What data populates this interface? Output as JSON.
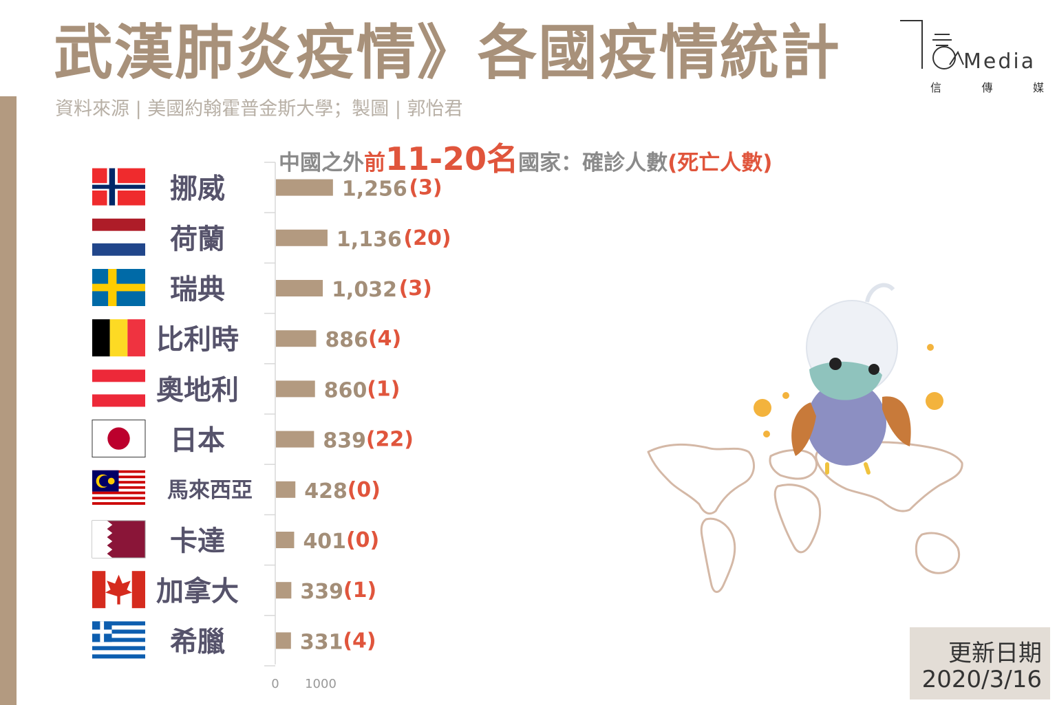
{
  "header": {
    "title": "武漢肺炎疫情》各國疫情統計",
    "source": "資料來源 | 美國約翰霍普金斯大學；製圖 | 郭怡君"
  },
  "logo": {
    "text": "Media",
    "sub": [
      "信",
      "傳",
      "媒"
    ]
  },
  "update": {
    "label": "更新日期",
    "date": "2020/3/16"
  },
  "colors": {
    "bar": "#b39a80",
    "deaths": "#e0553c",
    "title": "#a8917a",
    "label": "#56536b"
  },
  "chart_data": {
    "type": "bar",
    "orientation": "horizontal",
    "title_parts": [
      {
        "text": "中國之外",
        "style": "gray"
      },
      {
        "text": "前",
        "style": "red"
      },
      {
        "text": "11-20名",
        "style": "big"
      },
      {
        "text": "國家：確診人數",
        "style": "gray"
      },
      {
        "text": "(死亡人數)",
        "style": "red"
      }
    ],
    "categories": [
      "挪威",
      "荷蘭",
      "瑞典",
      "比利時",
      "奧地利",
      "日本",
      "馬來西亞",
      "卡達",
      "加拿大",
      "希臘"
    ],
    "flags": [
      "norway",
      "netherlands",
      "sweden",
      "belgium",
      "austria",
      "japan",
      "malaysia",
      "qatar",
      "canada",
      "greece"
    ],
    "series": [
      {
        "values": [
          1256,
          1136,
          1032,
          886,
          860,
          839,
          428,
          401,
          339,
          331
        ]
      },
      {
        "values": [
          3,
          20,
          3,
          4,
          1,
          22,
          0,
          0,
          1,
          4
        ]
      }
    ],
    "confirmed_labels": [
      "1,256",
      "1,136",
      "1,032",
      "886",
      "860",
      "839",
      "428",
      "401",
      "339",
      "331"
    ],
    "death_labels": [
      "(3)",
      "(20)",
      "(3)",
      "(4)",
      "(1)",
      "(22)",
      "(0)",
      "(0)",
      "(1)",
      "(4)"
    ],
    "xticks": [
      "0",
      "1000"
    ],
    "xlim": [
      0,
      16000
    ]
  }
}
